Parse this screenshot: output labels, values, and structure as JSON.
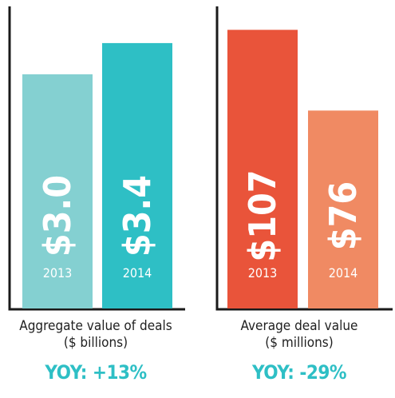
{
  "chart_data": [
    {
      "type": "bar",
      "categories": [
        "2013",
        "2014"
      ],
      "values": [
        3.0,
        3.4
      ],
      "value_labels": [
        "$3.0",
        "$3.4"
      ],
      "xlabel": "Aggregate value of deals",
      "unit_label": "($ billions)",
      "ylim": [
        0,
        3.87
      ],
      "bar_colors": [
        "#84d0d1",
        "#2ebfc5"
      ],
      "yoy": "YOY: +13%",
      "yoy_color": "#2ebfc5",
      "grid": false
    },
    {
      "type": "bar",
      "categories": [
        "2013",
        "2014"
      ],
      "values": [
        107,
        76
      ],
      "value_labels": [
        "$107",
        "$76"
      ],
      "xlabel": "Average deal value",
      "unit_label": "($ millions)",
      "ylim": [
        0,
        116
      ],
      "bar_colors": [
        "#e9543a",
        "#f08a63"
      ],
      "yoy": "YOY: -29%",
      "yoy_color": "#2ebfc5",
      "grid": false
    }
  ],
  "colors": {
    "axis": "#1a1a1a",
    "bar_text": "#ffffff",
    "caption": "#1f1f1f"
  }
}
